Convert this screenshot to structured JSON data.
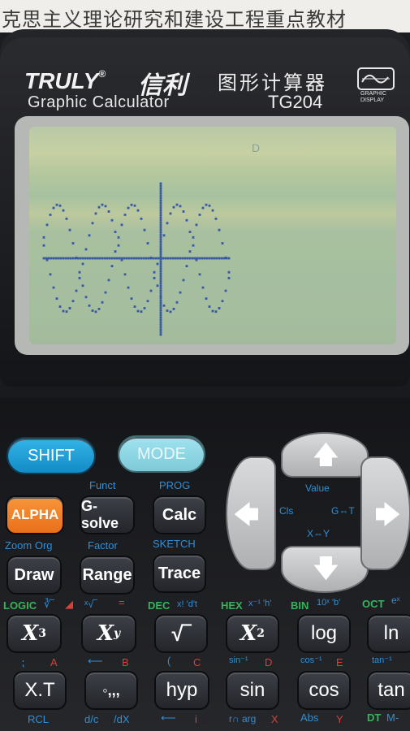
{
  "header_text": "克思主义理论研究和建设工程重点教材",
  "brand": {
    "name": "TRULY",
    "reg": "®",
    "name_cn": "信利",
    "subtitle": "Graphic Calculator",
    "title_cn": "图形计算器",
    "model": "TG204",
    "display_label_1": "GRAPHIC",
    "display_label_2": "DISPLAY"
  },
  "screen": {
    "indicator": "D"
  },
  "keys": {
    "shift": "SHIFT",
    "mode": "MODE",
    "alpha": "ALPHA",
    "gsolve": "G-solve",
    "calc": "Calc",
    "draw": "Draw",
    "range": "Range",
    "trace": "Trace",
    "x3_base": "X",
    "x3_exp": "3",
    "xy_base": "X",
    "xy_exp": "y",
    "sqrt": "√‾",
    "x2_base": "X",
    "x2_exp": "2",
    "log": "log",
    "ln": "ln",
    "xt": "X.T",
    "comma": "◦,,,",
    "hyp": "hyp",
    "sin": "sin",
    "cos": "cos",
    "tan": "tan"
  },
  "labels": {
    "funct": "Funct",
    "prog": "PROG",
    "zoom_org": "Zoom Org",
    "factor": "Factor",
    "sketch": "SKETCH",
    "logic": "LOGIC",
    "logic_cube_root": "∛‾",
    "logic_red": "◢",
    "xroot": "ˣ√‾",
    "equals": "=",
    "dec": "DEC",
    "dec_sub": "x! 'd't",
    "hex": "HEX",
    "hex_sub": "x⁻¹ 'h'",
    "bin": "BIN",
    "bin_sub": "10ˣ 'b'",
    "oct": "OCT",
    "oct_sub": "eˣ",
    "row4_semicolon": "⁏",
    "row4_a": "A",
    "row4_arrow": "⟵",
    "row4_b": "B",
    "row4_open": "(",
    "row4_c": "C",
    "row4_sin_inv": "sin⁻¹",
    "row4_d": "D",
    "row4_cos_inv": "cos⁻¹",
    "row4_e": "E",
    "row4_tan_inv": "tan⁻¹",
    "row5_rcl": "RCL",
    "row5_dc": "d/c",
    "row5_dx": "/dX",
    "row5_arrow": "⟵",
    "row5_i": "i",
    "row5_rarg": "r∩ arg",
    "row5_x": "X",
    "row5_abs": "Abs",
    "row5_y": "Y",
    "row5_dt": "DT",
    "row5_m": "M-"
  },
  "dpad": {
    "value": "Value",
    "cls": "Cls",
    "g_t": "G⇔T",
    "x_y": "X⇔Y",
    "up": "🡅",
    "down": "🡇",
    "left": "🡄",
    "right": "🡆"
  },
  "colors": {
    "shift": "#1e9fd8",
    "mode": "#8fd7e4",
    "alpha": "#f07d27",
    "label_blue": "#2f8fd6",
    "label_green": "#34b55a",
    "label_red": "#d74039",
    "lcd_pixels": "#3656a8"
  }
}
